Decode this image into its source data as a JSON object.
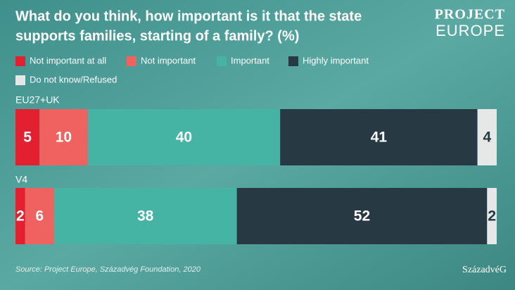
{
  "chart_data": {
    "type": "stacked-bar",
    "title": [
      "What do you think, how important is it that the state",
      "supports families, starting of a family? (%)"
    ],
    "brand": [
      "PROJECT",
      "EUROPE"
    ],
    "publisher": "SzázadvéG",
    "source": "Source: Project Europe, Századvég Foundation, 2020",
    "categories": [
      "EU27+UK",
      "V4"
    ],
    "xlim": [
      0,
      100
    ],
    "series": [
      {
        "name": "Not important at all",
        "color": "#e2202f",
        "values": [
          5,
          2
        ]
      },
      {
        "name": "Not important",
        "color": "#f0625f",
        "values": [
          10,
          6
        ]
      },
      {
        "name": "Important",
        "color": "#46b4a4",
        "values": [
          40,
          38
        ]
      },
      {
        "name": "Highly important",
        "color": "#273a44",
        "values": [
          41,
          52
        ]
      },
      {
        "name": "Do not know/Refused",
        "color": "#e6e8e8",
        "values": [
          4,
          2
        ]
      }
    ]
  }
}
